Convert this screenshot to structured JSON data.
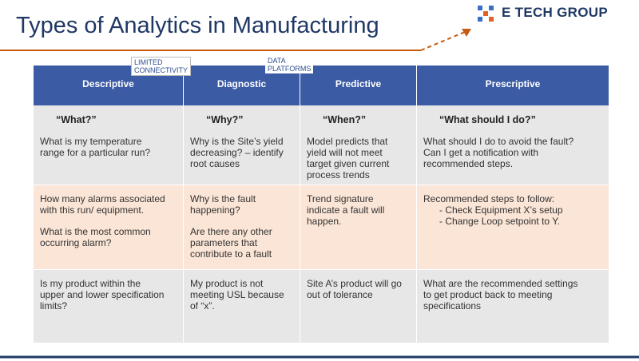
{
  "header": {
    "title": "Types of Analytics in Manufacturing",
    "logo": "E TECH GROUP"
  },
  "labels": [
    [
      "LIMITED",
      "CONNECTIVITY"
    ],
    [
      "DATA",
      "PLATFORMS"
    ]
  ],
  "table": {
    "columns": [
      "Descriptive",
      "Diagnostic",
      "Predictive",
      "Prescriptive"
    ],
    "rows": [
      [
        {
          "heading": "“What?”",
          "paragraphs": [
            [
              "What is my temperature",
              "range for a particular run?"
            ]
          ]
        },
        {
          "heading": "“Why?”",
          "paragraphs": [
            [
              "Why is the Site’s yield",
              "decreasing? – identify",
              "root causes"
            ]
          ]
        },
        {
          "heading": "“When?”",
          "paragraphs": [
            [
              "Model predicts that",
              "yield will not meet",
              "target given current",
              "process trends"
            ]
          ]
        },
        {
          "heading": "“What should I do?”",
          "paragraphs": [
            [
              "What should I do to avoid the fault?",
              "Can I get a notification with",
              "recommended steps."
            ]
          ]
        }
      ],
      [
        {
          "paragraphs": [
            [
              "How many alarms associated",
              "with this run/ equipment."
            ],
            [
              "What is the most common",
              "occurring alarm?"
            ]
          ]
        },
        {
          "paragraphs": [
            [
              "Why is the fault",
              "happening?"
            ],
            [
              "Are there any other",
              "parameters that",
              "contribute to a fault"
            ]
          ]
        },
        {
          "paragraphs": [
            [
              "Trend signature",
              "indicate a fault will",
              "happen."
            ]
          ]
        },
        {
          "paragraphs": [
            [
              "Recommended steps to follow:"
            ]
          ],
          "bullets": [
            "- Check Equipment X’s setup",
            "- Change Loop setpoint to Y."
          ]
        }
      ],
      [
        {
          "paragraphs": [
            [
              "Is my product within the",
              "upper and lower specification",
              "limits?"
            ]
          ]
        },
        {
          "paragraphs": [
            [
              "My product is not",
              "meeting USL because",
              "of “x”."
            ]
          ]
        },
        {
          "paragraphs": [
            [
              "Site A’s product will go",
              "out of tolerance"
            ]
          ]
        },
        {
          "paragraphs": [
            [
              "What are the recommended settings",
              "to get product back to meeting",
              "specifications"
            ]
          ]
        }
      ]
    ]
  }
}
